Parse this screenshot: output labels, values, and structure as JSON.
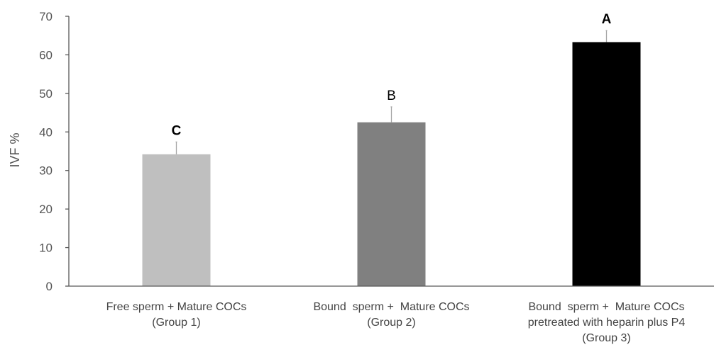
{
  "chart_data": {
    "type": "bar",
    "title": "",
    "xlabel": "",
    "ylabel": "IVF %",
    "ylim": [
      0,
      70
    ],
    "yticks": [
      0,
      10,
      20,
      30,
      40,
      50,
      60,
      70
    ],
    "grid": false,
    "categories": [
      [
        "Free sperm + Mature COCs",
        "(Group 1)"
      ],
      [
        "Bound  sperm +  Mature COCs",
        "(Group 2)"
      ],
      [
        "Bound  sperm +  Mature COCs",
        "pretreated with heparin plus P4",
        "(Group 3)"
      ]
    ],
    "values": [
      34.2,
      42.5,
      63.3
    ],
    "error": [
      3.2,
      4.0,
      3.0
    ],
    "significance_labels": [
      "C",
      "B",
      "A"
    ],
    "significance_bold": [
      true,
      false,
      true
    ],
    "colors": [
      "#bfbfbf",
      "#808080",
      "#000000"
    ],
    "error_color": "#a6a6a6",
    "axis_color": "#595959"
  }
}
